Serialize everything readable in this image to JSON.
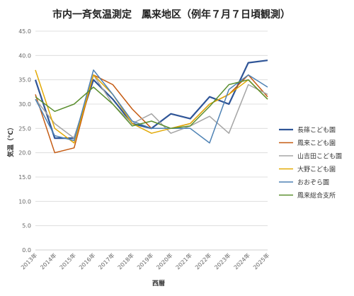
{
  "chart_data": {
    "type": "line",
    "title": "市内一斉気温測定　鳳来地区（例年７月７日頃観測）",
    "xlabel": "西暦",
    "ylabel": "気温（℃）",
    "ylim": [
      0,
      45
    ],
    "ytick_step": 5,
    "ytick_labels": [
      "0.0",
      "5.0",
      "10.0",
      "15.0",
      "20.0",
      "25.0",
      "30.0",
      "35.0",
      "40.0",
      "45.0"
    ],
    "categories": [
      "2013年",
      "2014年",
      "2015年",
      "2016年",
      "2017年",
      "2018年",
      "2019年",
      "2020年",
      "2021年",
      "2022年",
      "2023年",
      "2024年",
      "2025年"
    ],
    "grid": true,
    "legend_position": "right",
    "series": [
      {
        "name": "長篠こども園",
        "color": "#2f5597",
        "values": [
          35.0,
          23.0,
          23.0,
          35.0,
          31.0,
          26.0,
          25.0,
          28.0,
          27.0,
          31.5,
          30.0,
          38.5,
          39.0
        ]
      },
      {
        "name": "鳳来こども園",
        "color": "#c55a11",
        "values": [
          32.0,
          20.0,
          21.0,
          36.0,
          34.0,
          29.0,
          25.0,
          25.0,
          26.0,
          30.0,
          32.0,
          36.0,
          31.5
        ]
      },
      {
        "name": "山吉田こども園",
        "color": "#a5a5a5",
        "values": [
          31.0,
          26.0,
          23.0,
          36.0,
          30.0,
          26.0,
          28.0,
          24.0,
          25.5,
          27.5,
          24.0,
          34.0,
          32.0
        ]
      },
      {
        "name": "大野こども園",
        "color": "#e2a905",
        "values": [
          37.0,
          25.0,
          22.0,
          36.0,
          32.0,
          26.0,
          24.0,
          25.0,
          26.0,
          30.0,
          32.0,
          35.0,
          31.0
        ]
      },
      {
        "name": "おおぞら園",
        "color": "#4e82b4",
        "values": [
          31.0,
          23.5,
          22.5,
          37.0,
          32.0,
          26.5,
          25.0,
          25.0,
          25.0,
          22.0,
          33.0,
          36.0,
          33.5
        ]
      },
      {
        "name": "鳳来総合支所",
        "color": "#5b8f2f",
        "values": [
          31.5,
          28.5,
          30.0,
          33.5,
          30.0,
          25.5,
          26.5,
          25.0,
          25.5,
          29.5,
          34.0,
          35.0,
          31.0
        ]
      }
    ]
  }
}
